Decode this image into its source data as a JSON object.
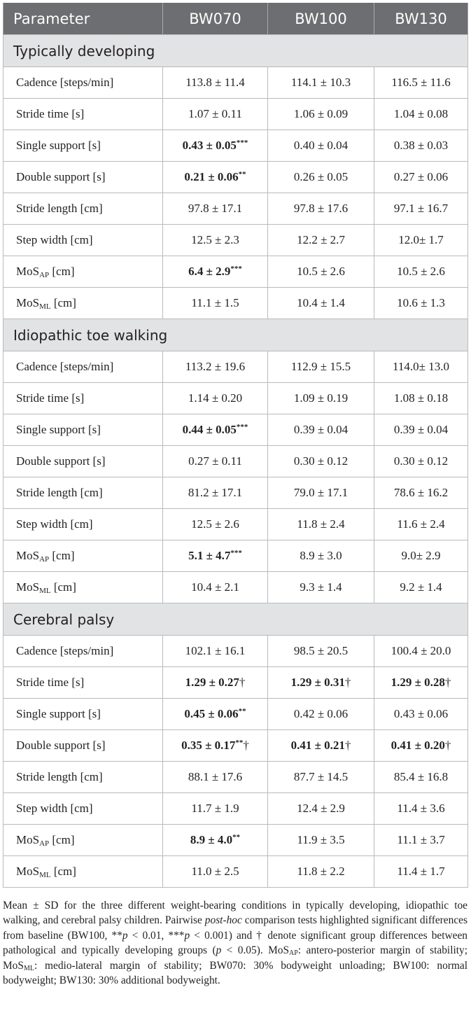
{
  "table": {
    "headers": [
      "Parameter",
      "BW070",
      "BW100",
      "BW130"
    ],
    "groups": [
      {
        "title": "Typically developing",
        "rows": [
          {
            "label": "Cadence [steps/min]",
            "values": [
              "113.8 ± 11.4",
              "114.1 ± 10.3",
              "116.5 ± 11.6"
            ]
          },
          {
            "label": "Stride time [s]",
            "values": [
              "1.07 ± 0.11",
              "1.06 ± 0.09",
              "1.04 ± 0.08"
            ]
          },
          {
            "label": "Single support [s]",
            "values": [
              "0.43 ± 0.05",
              "0.40 ± 0.04",
              "0.38 ± 0.03"
            ],
            "marks": [
              "***",
              "",
              ""
            ],
            "bold": [
              true,
              false,
              false
            ]
          },
          {
            "label": "Double support [s]",
            "values": [
              "0.21 ± 0.06",
              "0.26 ± 0.05",
              "0.27 ± 0.06"
            ],
            "marks": [
              "**",
              "",
              ""
            ],
            "bold": [
              true,
              false,
              false
            ]
          },
          {
            "label": "Stride length [cm]",
            "values": [
              "97.8 ± 17.1",
              "97.8 ± 17.6",
              "97.1 ± 16.7"
            ]
          },
          {
            "label": "Step width [cm]",
            "values": [
              "12.5 ± 2.3",
              "12.2 ± 2.7",
              "12.0± 1.7"
            ]
          },
          {
            "label": "MoS",
            "sub": "AP",
            "unit": " [cm]",
            "values": [
              "6.4 ± 2.9",
              "10.5 ± 2.6",
              "10.5 ± 2.6"
            ],
            "marks": [
              "***",
              "",
              ""
            ],
            "bold": [
              true,
              false,
              false
            ]
          },
          {
            "label": "MoS",
            "sub": "ML",
            "unit": " [cm]",
            "values": [
              "11.1 ± 1.5",
              "10.4 ± 1.4",
              "10.6 ± 1.3"
            ]
          }
        ]
      },
      {
        "title": "Idiopathic toe walking",
        "rows": [
          {
            "label": "Cadence [steps/min]",
            "values": [
              "113.2 ± 19.6",
              "112.9 ± 15.5",
              "114.0± 13.0"
            ]
          },
          {
            "label": "Stride time [s]",
            "values": [
              "1.14 ± 0.20",
              "1.09 ± 0.19",
              "1.08 ± 0.18"
            ]
          },
          {
            "label": "Single support [s]",
            "values": [
              "0.44 ± 0.05",
              "0.39 ± 0.04",
              "0.39 ± 0.04"
            ],
            "marks": [
              "***",
              "",
              ""
            ],
            "bold": [
              true,
              false,
              false
            ]
          },
          {
            "label": "Double support [s]",
            "values": [
              "0.27 ± 0.11",
              "0.30 ± 0.12",
              "0.30 ± 0.12"
            ]
          },
          {
            "label": "Stride length [cm]",
            "values": [
              "81.2 ± 17.1",
              "79.0 ± 17.1",
              "78.6 ± 16.2"
            ]
          },
          {
            "label": "Step width [cm]",
            "values": [
              "12.5 ± 2.6",
              "11.8 ± 2.4",
              "11.6 ± 2.4"
            ]
          },
          {
            "label": "MoS",
            "sub": "AP",
            "unit": " [cm]",
            "values": [
              "5.1 ± 4.7",
              "8.9 ± 3.0",
              "9.0± 2.9"
            ],
            "marks": [
              "***",
              "",
              ""
            ],
            "bold": [
              true,
              false,
              false
            ]
          },
          {
            "label": "MoS",
            "sub": "ML",
            "unit": " [cm]",
            "values": [
              "10.4 ± 2.1",
              "9.3 ± 1.4",
              "9.2 ± 1.4"
            ]
          }
        ]
      },
      {
        "title": "Cerebral palsy",
        "rows": [
          {
            "label": "Cadence [steps/min]",
            "values": [
              "102.1 ± 16.1",
              "98.5 ± 20.5",
              "100.4 ± 20.0"
            ]
          },
          {
            "label": "Stride time [s]",
            "values": [
              "1.29 ± 0.27",
              "1.29 ± 0.31",
              "1.29 ± 0.28"
            ],
            "marks": [
              "†",
              "†",
              "†"
            ],
            "bold": [
              true,
              true,
              true
            ]
          },
          {
            "label": "Single support [s]",
            "values": [
              "0.45 ± 0.06",
              "0.42 ± 0.06",
              "0.43 ± 0.06"
            ],
            "marks": [
              "**",
              "",
              ""
            ],
            "bold": [
              true,
              false,
              false
            ]
          },
          {
            "label": "Double support [s]",
            "values": [
              "0.35 ± 0.17",
              "0.41 ± 0.21",
              "0.41 ± 0.20"
            ],
            "marks": [
              "**†",
              "†",
              "†"
            ],
            "bold": [
              true,
              true,
              true
            ]
          },
          {
            "label": "Stride length [cm]",
            "values": [
              "88.1 ± 17.6",
              "87.7 ± 14.5",
              "85.4 ± 16.8"
            ]
          },
          {
            "label": "Step width [cm]",
            "values": [
              "11.7 ± 1.9",
              "12.4 ± 2.9",
              "11.4 ± 3.6"
            ]
          },
          {
            "label": "MoS",
            "sub": "AP",
            "unit": " [cm]",
            "values": [
              "8.9 ± 4.0",
              "11.9 ± 3.5",
              "11.1 ± 3.7"
            ],
            "marks": [
              "**",
              "",
              ""
            ],
            "bold": [
              true,
              false,
              false
            ]
          },
          {
            "label": "MoS",
            "sub": "ML",
            "unit": " [cm]",
            "values": [
              "11.0 ± 2.5",
              "11.8 ± 2.2",
              "11.4 ± 1.7"
            ]
          }
        ]
      }
    ]
  },
  "footnote": [
    {
      "t": "Mean ± SD for the three different weight-bearing conditions in typically developing, idiopathic toe walking, and cerebral palsy children. Pairwise "
    },
    {
      "t": "post-hoc",
      "i": true
    },
    {
      "t": " comparison tests highlighted significant differences from baseline (BW100, **"
    },
    {
      "t": "p",
      "i": true
    },
    {
      "t": " < 0.01, ***"
    },
    {
      "t": "p",
      "i": true
    },
    {
      "t": " < 0.001) and † denote significant group differences between pathological and typically developing groups ("
    },
    {
      "t": "p",
      "i": true
    },
    {
      "t": " < 0.05). MoS"
    },
    {
      "t": "AP",
      "sub": true
    },
    {
      "t": ": antero-posterior margin of stability; MoS"
    },
    {
      "t": "ML",
      "sub": true
    },
    {
      "t": ": medio-lateral margin of stability; BW070: 30% bodyweight unloading; BW100: normal bodyweight; BW130: 30% additional bodyweight."
    }
  ]
}
